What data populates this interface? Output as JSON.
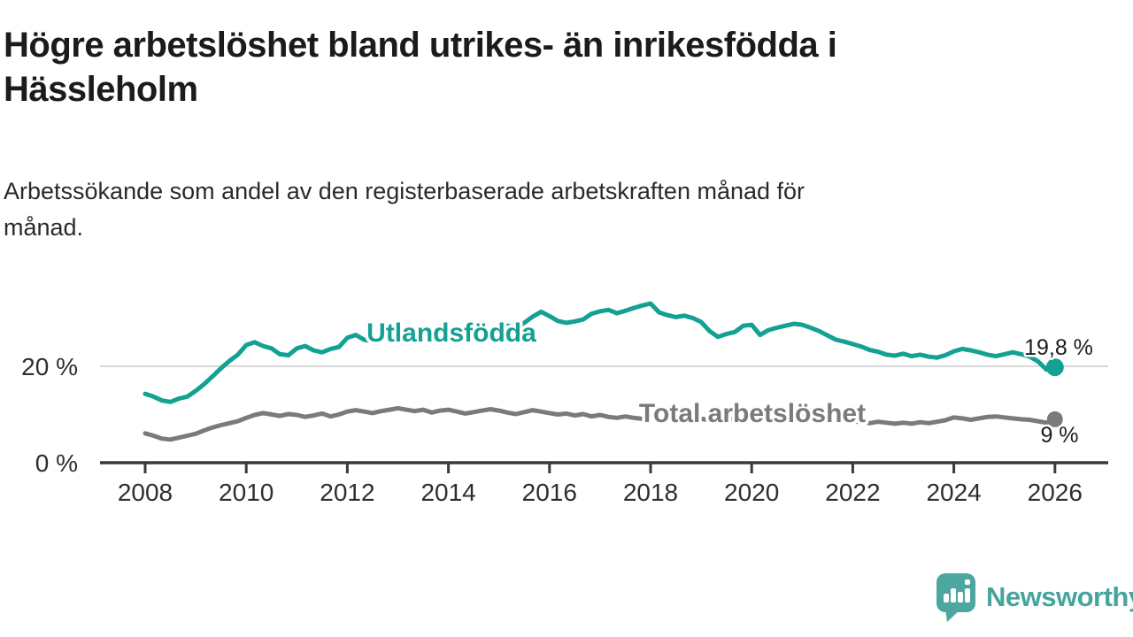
{
  "header": {
    "title_lines": [
      "Högre arbetslöshet bland utrikes- än inrikesfödda i",
      "Hässleholm"
    ],
    "subtitle_lines": [
      "Arbetssökande som andel av den registerbaserade arbetskraften månad för",
      "månad."
    ]
  },
  "branding": {
    "logo_text": "Newsworthy",
    "logo_icon": "bar-chart-speech-bubble-icon",
    "logo_color": "#45a59c"
  },
  "chart_data": {
    "type": "line",
    "title": "Högre arbetslöshet bland utrikes- än inrikesfödda i Hässleholm",
    "subtitle": "Arbetssökande som andel av den registerbaserade arbetskraften månad för månad.",
    "unit": "%",
    "grid": "single horizontal gridline at 20 %",
    "legend_position": "inline labels next to lines",
    "x_axis": {
      "ticks": [
        2008,
        2010,
        2012,
        2014,
        2016,
        2018,
        2020,
        2022,
        2024,
        2026
      ],
      "range": [
        2007.1,
        2027.0
      ]
    },
    "y_axis": {
      "ticks": [
        {
          "value": 0,
          "label": "0 %"
        },
        {
          "value": 20,
          "label": "20 %"
        }
      ],
      "range": [
        0,
        35.5
      ]
    },
    "series": [
      {
        "name": "Utlandsfödda",
        "color": "#12a192",
        "end_label": "19,8 %",
        "end_value": 19.8,
        "start_year": 2008.0,
        "months_per_step": 2,
        "values": [
          14.3,
          13.7,
          12.9,
          12.6,
          13.3,
          13.7,
          14.9,
          16.3,
          17.9,
          19.6,
          21.1,
          22.4,
          24.4,
          25.0,
          24.2,
          23.7,
          22.5,
          22.3,
          23.7,
          24.2,
          23.3,
          22.9,
          23.6,
          24.0,
          25.9,
          26.5,
          25.5,
          25.2,
          25.6,
          25.9,
          26.3,
          26.6,
          26.2,
          26.0,
          26.4,
          26.7,
          27.0,
          27.3,
          26.8,
          26.6,
          27.1,
          27.5,
          28.0,
          28.4,
          28.1,
          29.0,
          30.3,
          31.3,
          30.4,
          29.4,
          29.0,
          29.3,
          29.7,
          30.9,
          31.4,
          31.7,
          31.0,
          31.5,
          32.1,
          32.6,
          33.0,
          31.2,
          30.6,
          30.2,
          30.5,
          30.0,
          29.2,
          27.3,
          26.1,
          26.7,
          27.1,
          28.4,
          28.6,
          26.5,
          27.5,
          28.0,
          28.4,
          28.8,
          28.6,
          28.0,
          27.3,
          26.4,
          25.5,
          25.1,
          24.6,
          24.1,
          23.4,
          23.0,
          22.4,
          22.2,
          22.6,
          22.1,
          22.4,
          22.0,
          21.8,
          22.3,
          23.1,
          23.6,
          23.3,
          22.9,
          22.4,
          22.1,
          22.5,
          22.9,
          22.5,
          22.0,
          21.0,
          19.3,
          19.8
        ]
      },
      {
        "name": "Total arbetslöshet",
        "color": "#7a7a7a",
        "end_label": "9 %",
        "end_value": 9.0,
        "start_year": 2008.0,
        "months_per_step": 2,
        "values": [
          6.1,
          5.6,
          5.0,
          4.8,
          5.2,
          5.6,
          6.0,
          6.7,
          7.3,
          7.8,
          8.2,
          8.6,
          9.3,
          9.9,
          10.3,
          10.0,
          9.7,
          10.1,
          9.9,
          9.5,
          9.8,
          10.2,
          9.6,
          10.0,
          10.6,
          10.9,
          10.6,
          10.3,
          10.7,
          11.0,
          11.3,
          11.0,
          10.7,
          11.0,
          10.4,
          10.8,
          11.0,
          10.6,
          10.2,
          10.5,
          10.8,
          11.1,
          10.8,
          10.4,
          10.1,
          10.5,
          10.9,
          10.6,
          10.3,
          10.0,
          10.2,
          9.8,
          10.1,
          9.6,
          9.9,
          9.5,
          9.3,
          9.6,
          9.3,
          9.1,
          9.4,
          9.1,
          8.9,
          9.2,
          9.0,
          9.3,
          9.1,
          8.8,
          9.0,
          9.2,
          9.0,
          9.3,
          9.6,
          10.0,
          10.3,
          10.1,
          9.9,
          10.2,
          10.0,
          9.7,
          9.4,
          9.2,
          9.0,
          8.8,
          8.6,
          8.4,
          8.2,
          8.5,
          8.3,
          8.1,
          8.3,
          8.1,
          8.4,
          8.2,
          8.5,
          8.8,
          9.4,
          9.2,
          8.9,
          9.2,
          9.5,
          9.6,
          9.4,
          9.2,
          9.0,
          8.9,
          8.6,
          8.3,
          9.0
        ]
      }
    ]
  }
}
